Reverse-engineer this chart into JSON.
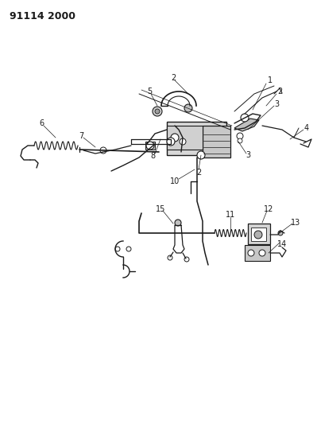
{
  "title": "91114 2000",
  "bg_color": "#ffffff",
  "line_color": "#1a1a1a",
  "label_fontsize": 7,
  "fig_width": 3.99,
  "fig_height": 5.33,
  "dpi": 100
}
